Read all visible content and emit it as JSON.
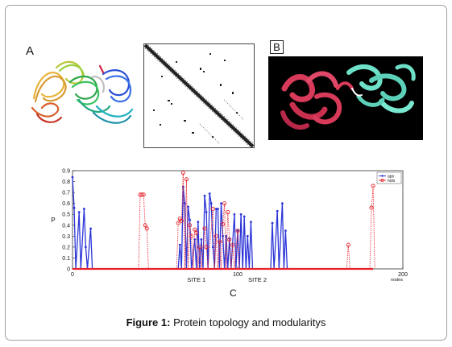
{
  "figure": {
    "panel_a_label": "A",
    "panel_b_label": "B",
    "panel_c_label": "C",
    "caption_label": "Figure 1:",
    "caption_text": " Protein topology and modularitys"
  },
  "colors": {
    "apo": "#2b35d8",
    "holo": "#e8202a",
    "panel_b_bg": "#000000",
    "domain_red": "#d83a5a",
    "domain_cyan": "#6fe0c8"
  },
  "chart_data": {
    "type": "line",
    "xlabel": "",
    "ylabel": "P",
    "x_unit_label": "nodes",
    "xlim": [
      0,
      200
    ],
    "ylim": [
      0,
      0.9
    ],
    "x_ticks": [
      0,
      100,
      200
    ],
    "y_ticks": [
      0,
      0.1,
      0.2,
      0.3,
      0.4,
      0.5,
      0.6,
      0.7,
      0.8,
      0.9
    ],
    "site_labels": [
      {
        "x": 75,
        "text": "SITE 1"
      },
      {
        "x": 112,
        "text": "SITE 2"
      }
    ],
    "legend_position": "top-right",
    "series": [
      {
        "name": "apo",
        "points": [
          [
            0,
            0.84
          ],
          [
            1,
            0.56
          ],
          [
            2,
            0.0
          ],
          [
            4,
            0.52
          ],
          [
            5,
            0.0
          ],
          [
            7,
            0.55
          ],
          [
            8,
            0.2
          ],
          [
            9,
            0.0
          ],
          [
            11,
            0.37
          ],
          [
            12,
            0.0
          ],
          [
            64,
            0.0
          ],
          [
            65,
            0.22
          ],
          [
            66,
            0.0
          ],
          [
            67,
            0.75
          ],
          [
            68,
            0.6
          ],
          [
            69,
            0.0
          ],
          [
            70,
            0.57
          ],
          [
            71,
            0.45
          ],
          [
            72,
            0.0
          ],
          [
            74,
            0.27
          ],
          [
            75,
            0.0
          ],
          [
            76,
            0.43
          ],
          [
            77,
            0.0
          ],
          [
            78,
            0.27
          ],
          [
            79,
            0.0
          ],
          [
            80,
            0.67
          ],
          [
            81,
            0.52
          ],
          [
            82,
            0.0
          ],
          [
            83,
            0.69
          ],
          [
            84,
            0.6
          ],
          [
            85,
            0.2
          ],
          [
            86,
            0.0
          ],
          [
            87,
            0.55
          ],
          [
            88,
            0.55
          ],
          [
            89,
            0.0
          ],
          [
            90,
            0.6
          ],
          [
            91,
            0.3
          ],
          [
            92,
            0.0
          ],
          [
            93,
            0.3
          ],
          [
            94,
            0.0
          ],
          [
            95,
            0.28
          ],
          [
            96,
            0.0
          ],
          [
            98,
            0.5
          ],
          [
            99,
            0.0
          ],
          [
            100,
            0.35
          ],
          [
            101,
            0.0
          ],
          [
            102,
            0.5
          ],
          [
            103,
            0.0
          ],
          [
            104,
            0.48
          ],
          [
            105,
            0.0
          ],
          [
            106,
            0.3
          ],
          [
            107,
            0.0
          ],
          [
            108,
            0.43
          ],
          [
            109,
            0.0
          ],
          [
            120,
            0.0
          ],
          [
            121,
            0.42
          ],
          [
            122,
            0.0
          ],
          [
            124,
            0.53
          ],
          [
            125,
            0.0
          ],
          [
            127,
            0.6
          ],
          [
            128,
            0.0
          ],
          [
            129,
            0.35
          ],
          [
            130,
            0.0
          ],
          [
            182,
            0.0
          ]
        ]
      },
      {
        "name": "holo",
        "points": [
          [
            40,
            0.0
          ],
          [
            41,
            0.68
          ],
          [
            42,
            0.68
          ],
          [
            43,
            0.68
          ],
          [
            44,
            0.4
          ],
          [
            45,
            0.37
          ],
          [
            46,
            0.0
          ],
          [
            63,
            0.0
          ],
          [
            64,
            0.42
          ],
          [
            65,
            0.46
          ],
          [
            66,
            0.44
          ],
          [
            67,
            0.88
          ],
          [
            68,
            0.0
          ],
          [
            69,
            0.82
          ],
          [
            70,
            0.0
          ],
          [
            71,
            0.4
          ],
          [
            72,
            0.3
          ],
          [
            73,
            0.0
          ],
          [
            74,
            0.36
          ],
          [
            75,
            0.33
          ],
          [
            76,
            0.0
          ],
          [
            77,
            0.2
          ],
          [
            78,
            0.0
          ],
          [
            80,
            0.37
          ],
          [
            81,
            0.2
          ],
          [
            82,
            0.0
          ],
          [
            85,
            0.55
          ],
          [
            86,
            0.0
          ],
          [
            87,
            0.3
          ],
          [
            88,
            0.0
          ],
          [
            89,
            0.25
          ],
          [
            90,
            0.0
          ],
          [
            91,
            0.41
          ],
          [
            92,
            0.6
          ],
          [
            93,
            0.0
          ],
          [
            94,
            0.52
          ],
          [
            95,
            0.27
          ],
          [
            96,
            0.0
          ],
          [
            97,
            0.22
          ],
          [
            98,
            0.0
          ],
          [
            100,
            0.35
          ],
          [
            101,
            0.0
          ],
          [
            166,
            0.0
          ],
          [
            167,
            0.22
          ],
          [
            168,
            0.0
          ],
          [
            180,
            0.0
          ],
          [
            181,
            0.56
          ],
          [
            182,
            0.76
          ],
          [
            183,
            0.0
          ]
        ]
      }
    ]
  }
}
